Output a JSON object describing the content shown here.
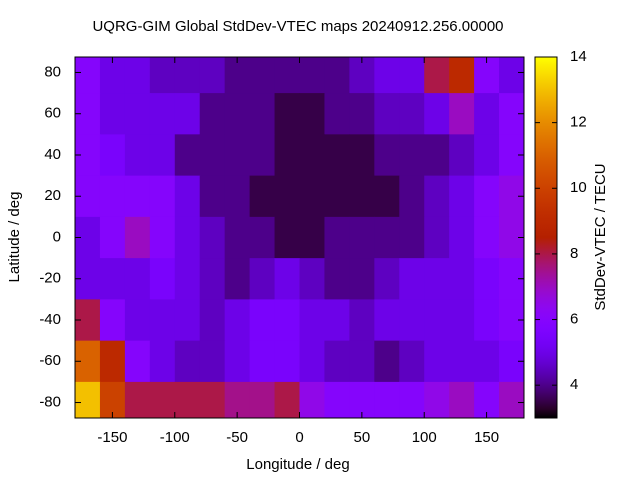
{
  "chart_data": {
    "type": "heatmap",
    "title": "UQRG-GIM Global StdDev-VTEC maps 20240912.256.00000",
    "x_label": "Longitude / deg",
    "y_label": "Latitude / deg",
    "colorbar_label": "StdDev-VTEC / TECU",
    "x": [
      -170,
      -150,
      -130,
      -110,
      -90,
      -70,
      -50,
      -30,
      -10,
      10,
      30,
      50,
      70,
      90,
      110,
      130,
      150,
      170
    ],
    "y": [
      80,
      60,
      40,
      20,
      0,
      -20,
      -40,
      -60,
      -80
    ],
    "z": [
      [
        6,
        5,
        5,
        4.5,
        4.5,
        4.5,
        4,
        4,
        4,
        4,
        4,
        4.5,
        5,
        5,
        8,
        9,
        6,
        5
      ],
      [
        6,
        5,
        5,
        5,
        5,
        4,
        4,
        4,
        3.5,
        3.5,
        4,
        4,
        4.5,
        4.5,
        5,
        7,
        5,
        6
      ],
      [
        6,
        5.5,
        5,
        5,
        4,
        4,
        4,
        4,
        3.5,
        3.5,
        3.5,
        3.5,
        4,
        4,
        4,
        4.5,
        5,
        6
      ],
      [
        6,
        6,
        6,
        6,
        5,
        4,
        4,
        3.5,
        3.5,
        3.5,
        3.5,
        3.5,
        3.5,
        4,
        4.5,
        5,
        6,
        6.5
      ],
      [
        5,
        6,
        7,
        6,
        5,
        4.5,
        4,
        4,
        3.5,
        3.5,
        4,
        4,
        4,
        4,
        4.5,
        5,
        6,
        6.5
      ],
      [
        5,
        5,
        5,
        5.5,
        5,
        4.5,
        4,
        4.5,
        5,
        4.5,
        4,
        4,
        4.5,
        5,
        5,
        5,
        5.5,
        6
      ],
      [
        8,
        6,
        5,
        5,
        5,
        4.5,
        5,
        5.5,
        5.5,
        5,
        5,
        4.5,
        5,
        5,
        5,
        5,
        5.5,
        6
      ],
      [
        11,
        9,
        6,
        5,
        4.5,
        4.5,
        5,
        5.5,
        5.5,
        5,
        4.5,
        4.5,
        4,
        4.5,
        5,
        5,
        5,
        5.5
      ],
      [
        13,
        10,
        8,
        8,
        8,
        8,
        7.5,
        7.5,
        8,
        6.5,
        6,
        6,
        6,
        6,
        6.5,
        7,
        6,
        7
      ]
    ],
    "xlim": [
      -180,
      180
    ],
    "ylim": [
      -87.5,
      87.5
    ],
    "xticks": [
      -150,
      -100,
      -50,
      0,
      50,
      100,
      150
    ],
    "yticks": [
      -80,
      -60,
      -40,
      -20,
      0,
      20,
      40,
      60,
      80
    ],
    "clim": [
      3,
      14
    ],
    "cticks": [
      4,
      6,
      8,
      10,
      12,
      14
    ]
  }
}
